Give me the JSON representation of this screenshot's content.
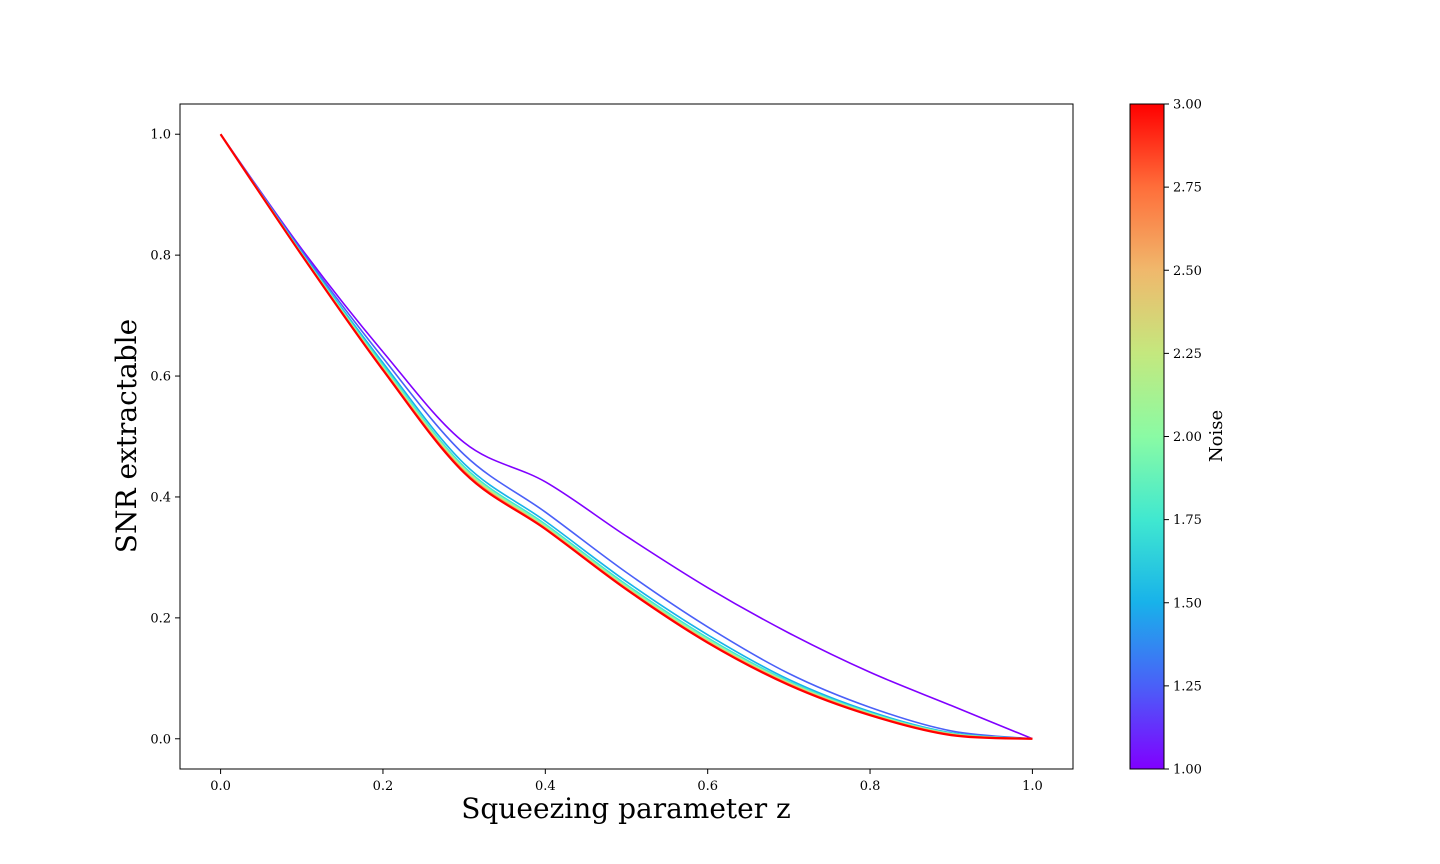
{
  "chart_data": {
    "type": "line",
    "title": "",
    "xlabel": "Squeezing parameter z",
    "ylabel": "SNR extractable",
    "xlim": [
      -0.05,
      1.05
    ],
    "ylim": [
      -0.05,
      1.05
    ],
    "xticks": [
      0.0,
      0.2,
      0.4,
      0.6,
      0.8,
      1.0
    ],
    "xtick_labels": [
      "0.0",
      "0.2",
      "0.4",
      "0.6",
      "0.8",
      "1.0"
    ],
    "yticks": [
      0.0,
      0.2,
      0.4,
      0.6,
      0.8,
      1.0
    ],
    "ytick_labels": [
      "0.0",
      "0.2",
      "0.4",
      "0.6",
      "0.8",
      "1.0"
    ],
    "grid": false,
    "x": [
      0.0,
      0.1,
      0.2,
      0.3,
      0.4,
      0.5,
      0.6,
      0.7,
      0.8,
      0.9,
      1.0
    ],
    "series": [
      {
        "noise": 1.0,
        "color": "#8000ff",
        "values": [
          1.0,
          0.81,
          0.64,
          0.49,
          0.425,
          0.335,
          0.25,
          0.175,
          0.11,
          0.055,
          0.0
        ]
      },
      {
        "noise": 1.25,
        "color": "#4a60f8",
        "values": [
          1.0,
          0.807,
          0.63,
          0.47,
          0.375,
          0.275,
          0.185,
          0.108,
          0.052,
          0.013,
          0.0
        ]
      },
      {
        "noise": 1.5,
        "color": "#18b2ea",
        "values": [
          1.0,
          0.804,
          0.622,
          0.455,
          0.36,
          0.26,
          0.172,
          0.098,
          0.045,
          0.01,
          0.0
        ]
      },
      {
        "noise": 1.75,
        "color": "#40e8d0",
        "values": [
          1.0,
          0.803,
          0.618,
          0.45,
          0.355,
          0.255,
          0.167,
          0.095,
          0.043,
          0.009,
          0.0
        ]
      },
      {
        "noise": 2.0,
        "color": "#8afba4",
        "values": [
          1.0,
          0.802,
          0.615,
          0.447,
          0.352,
          0.252,
          0.164,
          0.093,
          0.042,
          0.008,
          0.0
        ]
      },
      {
        "noise": 2.25,
        "color": "#c4e87e",
        "values": [
          1.0,
          0.801,
          0.613,
          0.445,
          0.35,
          0.25,
          0.162,
          0.092,
          0.041,
          0.008,
          0.0
        ]
      },
      {
        "noise": 2.5,
        "color": "#f0b86c",
        "values": [
          1.0,
          0.8,
          0.612,
          0.443,
          0.349,
          0.249,
          0.161,
          0.091,
          0.04,
          0.007,
          0.0
        ]
      },
      {
        "noise": 2.75,
        "color": "#ff6e3a",
        "values": [
          1.0,
          0.8,
          0.611,
          0.442,
          0.348,
          0.248,
          0.16,
          0.09,
          0.04,
          0.007,
          0.0
        ]
      },
      {
        "noise": 3.0,
        "color": "#ff0000",
        "values": [
          1.0,
          0.8,
          0.61,
          0.44,
          0.347,
          0.247,
          0.159,
          0.089,
          0.039,
          0.006,
          0.0
        ]
      }
    ],
    "colorbar": {
      "label": "Noise",
      "range": [
        1.0,
        3.0
      ],
      "ticks": [
        1.0,
        1.25,
        1.5,
        1.75,
        2.0,
        2.25,
        2.5,
        2.75,
        3.0
      ],
      "tick_labels": [
        "1.00",
        "1.25",
        "1.50",
        "1.75",
        "2.00",
        "2.25",
        "2.50",
        "2.75",
        "3.00"
      ],
      "colormap": [
        "#8000ff",
        "#4a60f8",
        "#18b2ea",
        "#40e8d0",
        "#8afba4",
        "#c4e87e",
        "#f0b86c",
        "#ff6e3a",
        "#ff0000"
      ]
    }
  }
}
